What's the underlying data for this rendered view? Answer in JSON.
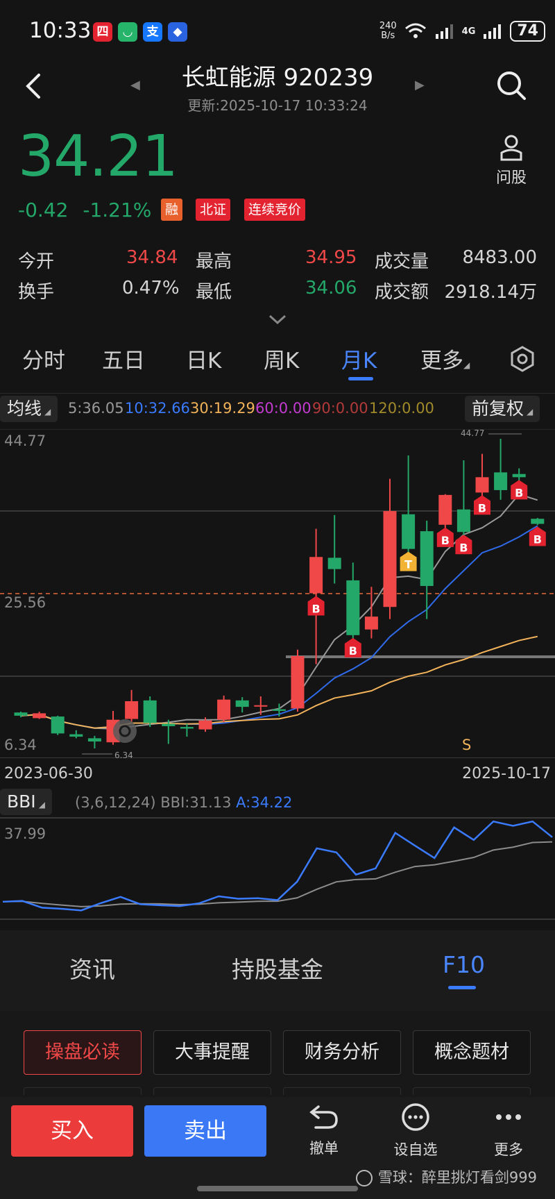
{
  "status_bar": {
    "time": "10:33",
    "net_speed_top": "240",
    "net_speed_bottom": "B/s",
    "network": "4G",
    "battery": "74"
  },
  "header": {
    "title": "长虹能源 920239",
    "subtitle": "更新:2025-10-17 10:33:24",
    "wen_gu": "问股"
  },
  "quote": {
    "price": "34.21",
    "change": "-0.42",
    "change_pct": "-1.21%",
    "badges": [
      "融",
      "北证",
      "连续竞价"
    ],
    "badge_colors": [
      "#e8612c",
      "#e3232f",
      "#e3232f"
    ]
  },
  "stats": {
    "open_label": "今开",
    "open": "34.84",
    "high_label": "最高",
    "high": "34.95",
    "volume_label": "成交量",
    "volume": "8483.00",
    "turnover_label": "换手",
    "turnover": "0.47%",
    "low_label": "最低",
    "low": "34.06",
    "amount_label": "成交额",
    "amount": "2918.14万"
  },
  "tabs": [
    {
      "label": "分时"
    },
    {
      "label": "五日"
    },
    {
      "label": "日K"
    },
    {
      "label": "周K"
    },
    {
      "label": "月K",
      "active": true
    },
    {
      "label": "更多"
    }
  ],
  "indicators": {
    "ma_label": "均线",
    "ma5": "5:36.05",
    "ma10": "10:32.66",
    "ma30": "30:19.29",
    "ma60": "60:0.00",
    "ma90": "90:0.00",
    "ma120": "120:0.00",
    "adjust": "前复权"
  },
  "chart_data": {
    "type": "candlestick",
    "ylim": [
      6.34,
      44.77
    ],
    "axis_labels": {
      "top": "44.77",
      "mid": "25.56",
      "bottom": "6.34"
    },
    "max_marker": "44.77",
    "min_marker": "6.34",
    "x_start": "2023-06-30",
    "x_end": "2025-10-17",
    "candles": [
      {
        "o": 10.8,
        "c": 10.4,
        "h": 10.9,
        "l": 10.2
      },
      {
        "o": 10.1,
        "c": 10.7,
        "h": 10.9,
        "l": 10.0
      },
      {
        "o": 10.3,
        "c": 8.2,
        "h": 10.4,
        "l": 8.0
      },
      {
        "o": 8.1,
        "c": 7.8,
        "h": 8.6,
        "l": 7.6
      },
      {
        "o": 7.6,
        "c": 7.2,
        "h": 7.9,
        "l": 6.34
      },
      {
        "o": 7.1,
        "c": 9.9,
        "h": 11.0,
        "l": 6.8
      },
      {
        "o": 10.0,
        "c": 12.2,
        "h": 13.6,
        "l": 9.6
      },
      {
        "o": 12.3,
        "c": 9.5,
        "h": 12.8,
        "l": 9.0
      },
      {
        "o": 9.4,
        "c": 9.1,
        "h": 9.9,
        "l": 6.9
      },
      {
        "o": 9.0,
        "c": 8.8,
        "h": 9.4,
        "l": 7.8
      },
      {
        "o": 8.7,
        "c": 9.8,
        "h": 10.2,
        "l": 8.4
      },
      {
        "o": 9.9,
        "c": 12.4,
        "h": 12.9,
        "l": 9.6
      },
      {
        "o": 12.3,
        "c": 11.5,
        "h": 12.7,
        "l": 10.8
      },
      {
        "o": 11.6,
        "c": 11.7,
        "h": 12.8,
        "l": 10.5
      },
      {
        "o": 11.2,
        "c": 11.0,
        "h": 11.9,
        "l": 10.3
      },
      {
        "o": 11.3,
        "c": 17.8,
        "h": 18.6,
        "l": 10.9
      },
      {
        "o": 25.6,
        "c": 30.1,
        "h": 33.6,
        "l": 16.8
      },
      {
        "o": 30.0,
        "c": 28.6,
        "h": 35.3,
        "l": 26.8
      },
      {
        "o": 27.2,
        "c": 20.4,
        "h": 29.4,
        "l": 19.9
      },
      {
        "o": 21.1,
        "c": 22.7,
        "h": 26.4,
        "l": 20.0
      },
      {
        "o": 23.9,
        "c": 35.8,
        "h": 39.8,
        "l": 22.4
      },
      {
        "o": 35.4,
        "c": 31.1,
        "h": 42.7,
        "l": 30.4
      },
      {
        "o": 33.3,
        "c": 26.5,
        "h": 34.6,
        "l": 22.4
      },
      {
        "o": 34.1,
        "c": 37.8,
        "h": 37.9,
        "l": 31.6
      },
      {
        "o": 36.0,
        "c": 33.2,
        "h": 42.1,
        "l": 32.1
      },
      {
        "o": 38.1,
        "c": 40.0,
        "h": 42.9,
        "l": 36.1
      },
      {
        "o": 40.6,
        "c": 38.4,
        "h": 44.77,
        "l": 37.2
      },
      {
        "o": 40.4,
        "c": 40.0,
        "h": 41.1,
        "l": 39.2
      },
      {
        "o": 34.84,
        "c": 34.21,
        "h": 34.95,
        "l": 34.06
      }
    ],
    "signals": [
      {
        "i": 16,
        "t": "B"
      },
      {
        "i": 18,
        "t": "B"
      },
      {
        "i": 21,
        "t": "T"
      },
      {
        "i": 23,
        "t": "B"
      },
      {
        "i": 24,
        "t": "B"
      },
      {
        "i": 25,
        "t": "B"
      },
      {
        "i": 27,
        "t": "B"
      },
      {
        "i": 28,
        "t": "B"
      }
    ],
    "s_marker": "S"
  },
  "bbi": {
    "label": "BBI",
    "params": "(3,6,12,24)",
    "value": "BBI:31.13",
    "a_value": "A:34.22",
    "top_value": "37.99"
  },
  "bottom_tabs": [
    {
      "label": "资讯"
    },
    {
      "label": "持股基金"
    },
    {
      "label": "F10",
      "active": true
    }
  ],
  "f10_buttons": [
    "操盘必读",
    "大事提醒",
    "财务分析",
    "概念题材"
  ],
  "actions": {
    "buy": "买入",
    "sell": "卖出",
    "undo": "撤单",
    "watchlist": "设自选",
    "more": "更多"
  },
  "watermark": "雪球：醉里挑灯看剑999",
  "colors": {
    "up": "#f04848",
    "down": "#24a86a",
    "accent": "#3a7bff",
    "ma5": "#9a9a9a",
    "ma10": "#2f6bea",
    "ma30": "#f2b35a"
  }
}
